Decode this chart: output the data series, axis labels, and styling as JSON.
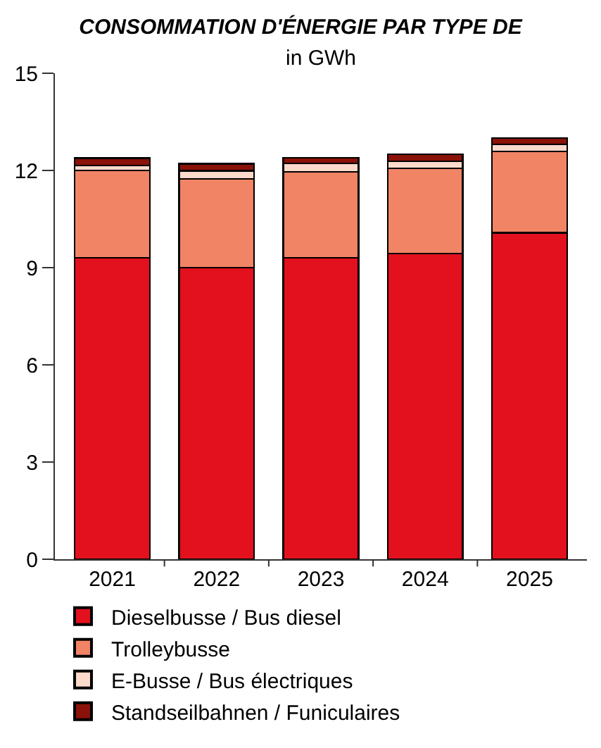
{
  "chart_data": {
    "type": "bar",
    "stacked": true,
    "title": "CONSOMMATION D'ÉNERGIE PAR TYPE DE",
    "subtitle": "in GWh",
    "categories": [
      "2021",
      "2022",
      "2023",
      "2024",
      "2025"
    ],
    "series": [
      {
        "name": "Dieselbusse / Bus diesel",
        "color": "#e3101e",
        "values": [
          9.3,
          9.0,
          9.3,
          9.44,
          10.08
        ]
      },
      {
        "name": "Trolleybusse",
        "color": "#f08465",
        "values": [
          2.7,
          2.74,
          2.66,
          2.63,
          2.51
        ]
      },
      {
        "name": "E-Busse / Bus électriques",
        "color": "#fbd9cb",
        "values": [
          0.15,
          0.25,
          0.26,
          0.21,
          0.22
        ]
      },
      {
        "name": "Standseilbahnen / Funiculaires",
        "color": "#8b1208",
        "values": [
          0.23,
          0.22,
          0.17,
          0.22,
          0.19
        ]
      }
    ],
    "ylim": [
      0,
      15
    ],
    "yticks": [
      0,
      3,
      6,
      9,
      12,
      15
    ],
    "legend": "bottom left"
  }
}
